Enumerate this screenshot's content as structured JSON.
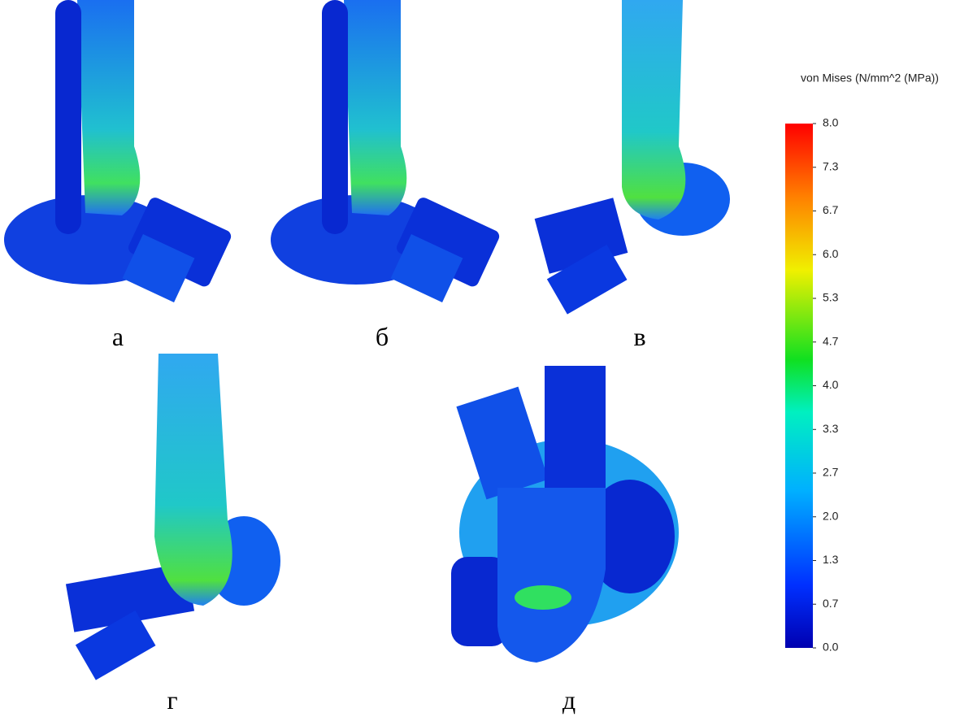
{
  "panels": [
    {
      "label": "а"
    },
    {
      "label": "б"
    },
    {
      "label": "в"
    },
    {
      "label": "г"
    },
    {
      "label": "д"
    }
  ],
  "colorbar": {
    "title": "von Mises (N/mm^2 (MPa))",
    "lim": [
      0,
      8
    ],
    "ticks": [
      {
        "value": 8,
        "label": "8.0"
      },
      {
        "value": 7.333,
        "label": "7.3"
      },
      {
        "value": 6.667,
        "label": "6.7"
      },
      {
        "value": 6,
        "label": "6.0"
      },
      {
        "value": 5.333,
        "label": "5.3"
      },
      {
        "value": 4.667,
        "label": "4.7"
      },
      {
        "value": 4,
        "label": "4.0"
      },
      {
        "value": 3.333,
        "label": "3.3"
      },
      {
        "value": 2.667,
        "label": "2.7"
      },
      {
        "value": 2,
        "label": "2.0"
      },
      {
        "value": 1.333,
        "label": "1.3"
      },
      {
        "value": 0.667,
        "label": "0.7"
      },
      {
        "value": 0,
        "label": "0.0"
      }
    ]
  }
}
